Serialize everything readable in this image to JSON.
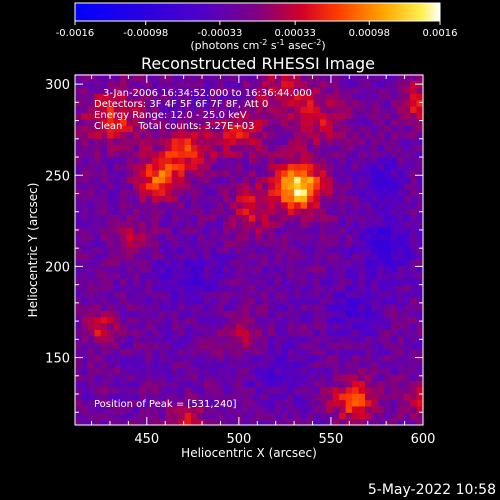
{
  "chart_data": {
    "type": "heatmap",
    "title": "Reconstructed RHESSI Image",
    "xlabel": "Heliocentric X (arcsec)",
    "ylabel": "Heliocentric Y (arcsec)",
    "xlim": [
      411,
      600
    ],
    "ylim": [
      113,
      305
    ],
    "xticks": [
      450,
      500,
      550,
      600
    ],
    "yticks": [
      150,
      200,
      250,
      300
    ],
    "colorbar": {
      "ticks": [
        "-0.0016",
        "-0.00098",
        "-0.00033",
        "0.00033",
        "0.00098",
        "0.0016"
      ],
      "label_main": "(photons cm",
      "label_exp1": "-2",
      "label_mid": " s",
      "label_exp2": "-1",
      "label_end": " asec",
      "label_exp3": "-2",
      "label_close": ")",
      "range": [
        -0.0016,
        0.0016
      ]
    },
    "annotations": [
      "3-Jan-2006 16:34:52.000 to 16:36:44.000",
      "Detectors: 3F 4F 5F 6F 7F 8F, Att 0",
      "Energy Range: 12.0 - 25.0 keV",
      "Clean     Total counts: 3.27E+03"
    ],
    "peak_text": "Position of Peak = [531,240]",
    "peak": [
      531,
      240
    ],
    "sources": [
      {
        "x": 531,
        "y": 242,
        "amp": 0.0016,
        "sx": 9,
        "sy": 9
      },
      {
        "x": 455,
        "y": 247,
        "amp": 0.001,
        "sx": 8,
        "sy": 8
      },
      {
        "x": 470,
        "y": 262,
        "amp": 0.0008,
        "sx": 10,
        "sy": 8
      },
      {
        "x": 430,
        "y": 280,
        "amp": 0.0007,
        "sx": 12,
        "sy": 10
      },
      {
        "x": 500,
        "y": 272,
        "amp": 0.0006,
        "sx": 10,
        "sy": 8
      },
      {
        "x": 540,
        "y": 280,
        "amp": 0.0006,
        "sx": 10,
        "sy": 10
      },
      {
        "x": 505,
        "y": 230,
        "amp": 0.0006,
        "sx": 8,
        "sy": 10
      },
      {
        "x": 520,
        "y": 295,
        "amp": 0.0005,
        "sx": 10,
        "sy": 8
      },
      {
        "x": 560,
        "y": 125,
        "amp": 0.0009,
        "sx": 8,
        "sy": 8
      },
      {
        "x": 598,
        "y": 125,
        "amp": 0.0006,
        "sx": 6,
        "sy": 8
      },
      {
        "x": 595,
        "y": 290,
        "amp": 0.0006,
        "sx": 6,
        "sy": 10
      },
      {
        "x": 423,
        "y": 165,
        "amp": 0.0006,
        "sx": 6,
        "sy": 6
      },
      {
        "x": 500,
        "y": 160,
        "amp": 0.0005,
        "sx": 8,
        "sy": 6
      },
      {
        "x": 470,
        "y": 115,
        "amp": 0.0005,
        "sx": 8,
        "sy": 6
      },
      {
        "x": 440,
        "y": 215,
        "amp": 0.0004,
        "sx": 8,
        "sy": 8
      },
      {
        "x": 578,
        "y": 210,
        "amp": -0.0006,
        "sx": 10,
        "sy": 12
      },
      {
        "x": 575,
        "y": 245,
        "amp": -0.0005,
        "sx": 8,
        "sy": 8
      },
      {
        "x": 560,
        "y": 175,
        "amp": -0.0004,
        "sx": 10,
        "sy": 10
      },
      {
        "x": 470,
        "y": 190,
        "amp": -0.0004,
        "sx": 12,
        "sy": 10
      },
      {
        "x": 520,
        "y": 140,
        "amp": -0.0003,
        "sx": 10,
        "sy": 10
      }
    ],
    "grid": false
  },
  "footer": {
    "date_stamp": "5-May-2022 10:58"
  }
}
